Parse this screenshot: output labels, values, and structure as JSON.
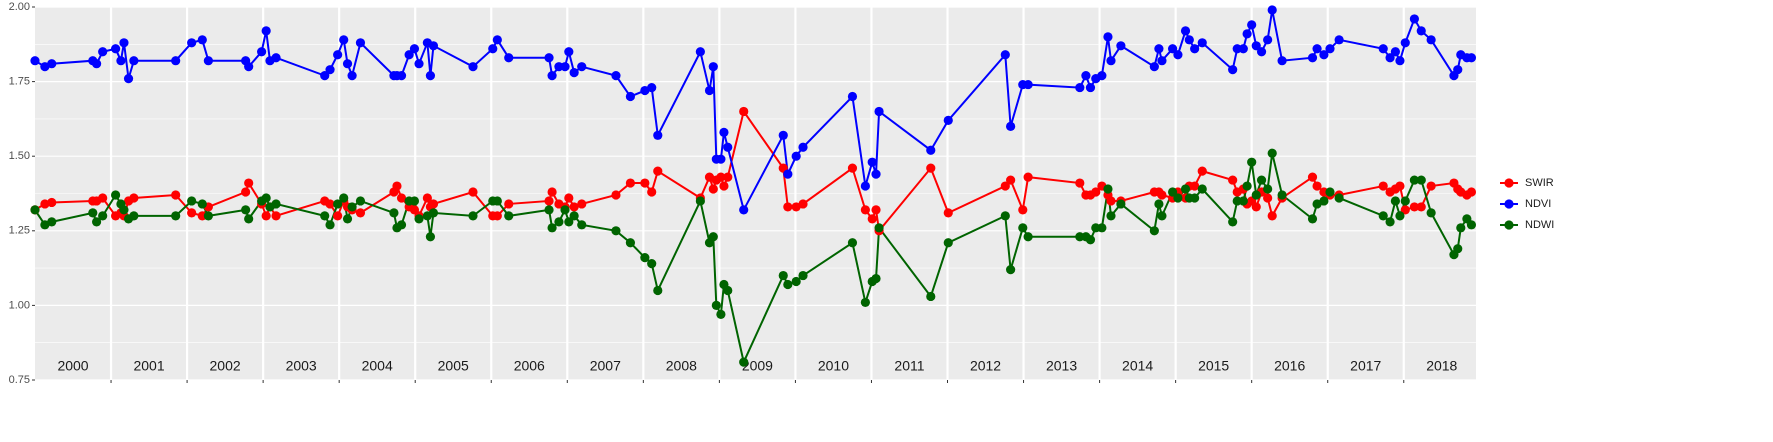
{
  "chart_data": {
    "type": "line",
    "x": [
      2000.0,
      2000.13,
      2000.22,
      2000.76,
      2000.81,
      2000.89,
      2001.06,
      2001.13,
      2001.17,
      2001.23,
      2001.3,
      2001.85,
      2002.06,
      2002.2,
      2002.28,
      2002.77,
      2002.81,
      2002.98,
      2003.04,
      2003.09,
      2003.17,
      2003.81,
      2003.88,
      2003.98,
      2004.06,
      2004.11,
      2004.17,
      2004.28,
      2004.72,
      2004.76,
      2004.82,
      2004.92,
      2004.99,
      2005.05,
      2005.16,
      2005.2,
      2005.24,
      2005.76,
      2006.02,
      2006.08,
      2006.23,
      2006.76,
      2006.8,
      2006.89,
      2006.97,
      2007.02,
      2007.09,
      2007.19,
      2007.64,
      2007.83,
      2008.02,
      2008.11,
      2008.19,
      2008.75,
      2008.87,
      2008.92,
      2008.96,
      2009.02,
      2009.06,
      2009.11,
      2009.32,
      2009.84,
      2009.9,
      2010.01,
      2010.1,
      2010.75,
      2010.92,
      2011.01,
      2011.06,
      2011.1,
      2011.78,
      2012.01,
      2012.76,
      2012.83,
      2012.99,
      2013.06,
      2013.74,
      2013.82,
      2013.88,
      2013.95,
      2014.03,
      2014.11,
      2014.15,
      2014.28,
      2014.72,
      2014.78,
      2014.82,
      2014.96,
      2015.03,
      2015.13,
      2015.18,
      2015.25,
      2015.35,
      2015.75,
      2015.81,
      2015.89,
      2015.94,
      2016.0,
      2016.06,
      2016.13,
      2016.21,
      2016.27,
      2016.4,
      2016.8,
      2016.86,
      2016.95,
      2017.03,
      2017.15,
      2017.73,
      2017.82,
      2017.89,
      2017.95,
      2018.02,
      2018.14,
      2018.23,
      2018.36,
      2018.66,
      2018.71,
      2018.75,
      2018.83,
      2018.89
    ],
    "series": [
      {
        "name": "SWIR",
        "color": "#ff0000",
        "values": [
          1.32,
          1.34,
          1.345,
          1.35,
          1.35,
          1.36,
          1.3,
          1.31,
          1.3,
          1.35,
          1.36,
          1.37,
          1.31,
          1.3,
          1.33,
          1.38,
          1.41,
          1.34,
          1.3,
          1.33,
          1.3,
          1.35,
          1.34,
          1.3,
          1.35,
          1.33,
          1.32,
          1.31,
          1.38,
          1.4,
          1.36,
          1.33,
          1.32,
          1.3,
          1.36,
          1.33,
          1.34,
          1.38,
          1.3,
          1.3,
          1.34,
          1.35,
          1.38,
          1.34,
          1.33,
          1.36,
          1.33,
          1.34,
          1.37,
          1.41,
          1.41,
          1.38,
          1.45,
          1.36,
          1.43,
          1.39,
          1.42,
          1.43,
          1.4,
          1.43,
          1.65,
          1.46,
          1.33,
          1.33,
          1.34,
          1.46,
          1.32,
          1.29,
          1.32,
          1.25,
          1.46,
          1.31,
          1.4,
          1.42,
          1.32,
          1.43,
          1.41,
          1.37,
          1.37,
          1.38,
          1.4,
          1.37,
          1.35,
          1.35,
          1.38,
          1.38,
          1.37,
          1.36,
          1.38,
          1.36,
          1.4,
          1.4,
          1.45,
          1.42,
          1.38,
          1.39,
          1.34,
          1.35,
          1.33,
          1.38,
          1.36,
          1.3,
          1.36,
          1.43,
          1.4,
          1.38,
          1.37,
          1.37,
          1.4,
          1.38,
          1.39,
          1.4,
          1.32,
          1.33,
          1.33,
          1.4,
          1.41,
          1.39,
          1.38,
          1.37,
          1.38
        ]
      },
      {
        "name": "NDVI",
        "color": "#0000ff",
        "values": [
          1.82,
          1.8,
          1.81,
          1.82,
          1.81,
          1.85,
          1.86,
          1.82,
          1.88,
          1.76,
          1.82,
          1.82,
          1.88,
          1.89,
          1.82,
          1.82,
          1.8,
          1.85,
          1.92,
          1.82,
          1.83,
          1.77,
          1.79,
          1.84,
          1.89,
          1.81,
          1.77,
          1.88,
          1.77,
          1.77,
          1.77,
          1.84,
          1.86,
          1.81,
          1.88,
          1.77,
          1.87,
          1.8,
          1.86,
          1.89,
          1.83,
          1.83,
          1.77,
          1.8,
          1.8,
          1.85,
          1.78,
          1.8,
          1.77,
          1.7,
          1.72,
          1.73,
          1.57,
          1.85,
          1.72,
          1.8,
          1.49,
          1.49,
          1.58,
          1.53,
          1.32,
          1.57,
          1.44,
          1.5,
          1.53,
          1.7,
          1.4,
          1.48,
          1.44,
          1.65,
          1.52,
          1.62,
          1.84,
          1.6,
          1.74,
          1.74,
          1.73,
          1.77,
          1.73,
          1.76,
          1.77,
          1.9,
          1.82,
          1.87,
          1.8,
          1.86,
          1.82,
          1.86,
          1.84,
          1.92,
          1.89,
          1.86,
          1.88,
          1.79,
          1.86,
          1.86,
          1.91,
          1.94,
          1.87,
          1.85,
          1.89,
          1.99,
          1.82,
          1.83,
          1.86,
          1.84,
          1.86,
          1.89,
          1.86,
          1.83,
          1.85,
          1.82,
          1.88,
          1.96,
          1.92,
          1.89,
          1.77,
          1.79,
          1.84,
          1.83,
          1.83
        ]
      },
      {
        "name": "NDWI",
        "color": "#006400",
        "values": [
          1.32,
          1.27,
          1.28,
          1.31,
          1.28,
          1.3,
          1.37,
          1.34,
          1.32,
          1.29,
          1.3,
          1.3,
          1.35,
          1.34,
          1.3,
          1.32,
          1.29,
          1.35,
          1.36,
          1.33,
          1.34,
          1.3,
          1.27,
          1.34,
          1.36,
          1.29,
          1.33,
          1.35,
          1.31,
          1.26,
          1.27,
          1.35,
          1.35,
          1.29,
          1.3,
          1.23,
          1.31,
          1.3,
          1.35,
          1.35,
          1.3,
          1.32,
          1.26,
          1.28,
          1.32,
          1.28,
          1.3,
          1.27,
          1.25,
          1.21,
          1.16,
          1.14,
          1.05,
          1.35,
          1.21,
          1.23,
          1.0,
          0.97,
          1.07,
          1.05,
          0.81,
          1.1,
          1.07,
          1.08,
          1.1,
          1.21,
          1.01,
          1.08,
          1.09,
          1.26,
          1.03,
          1.21,
          1.3,
          1.12,
          1.26,
          1.23,
          1.23,
          1.23,
          1.22,
          1.26,
          1.26,
          1.39,
          1.3,
          1.34,
          1.25,
          1.34,
          1.3,
          1.38,
          1.36,
          1.39,
          1.36,
          1.36,
          1.39,
          1.28,
          1.35,
          1.35,
          1.4,
          1.48,
          1.37,
          1.42,
          1.39,
          1.51,
          1.37,
          1.29,
          1.34,
          1.35,
          1.38,
          1.36,
          1.3,
          1.28,
          1.35,
          1.3,
          1.35,
          1.42,
          1.42,
          1.31,
          1.17,
          1.19,
          1.26,
          1.29,
          1.27
        ]
      }
    ],
    "xlim": [
      2000,
      2018.95
    ],
    "xticks": [
      2001,
      2002,
      2003,
      2004,
      2005,
      2006,
      2007,
      2008,
      2009,
      2010,
      2011,
      2012,
      2013,
      2014,
      2015,
      2016,
      2017,
      2018
    ],
    "ylim": [
      0.75,
      2.0
    ],
    "yticks": [
      0.75,
      {
        "value": 1.0,
        "label": "1.00"
      },
      1.25,
      {
        "value": 1.5,
        "label": "1.50"
      },
      1.75,
      {
        "value": 2.0,
        "label": "2.00"
      }
    ],
    "annotations": [
      {
        "x": 2000.5,
        "text": "2000"
      },
      {
        "x": 2001.5,
        "text": "2001"
      },
      {
        "x": 2002.5,
        "text": "2002"
      },
      {
        "x": 2003.5,
        "text": "2003"
      },
      {
        "x": 2004.5,
        "text": "2004"
      },
      {
        "x": 2005.5,
        "text": "2005"
      },
      {
        "x": 2006.5,
        "text": "2006"
      },
      {
        "x": 2007.5,
        "text": "2007"
      },
      {
        "x": 2008.5,
        "text": "2008"
      },
      {
        "x": 2009.5,
        "text": "2009"
      },
      {
        "x": 2010.5,
        "text": "2010"
      },
      {
        "x": 2011.5,
        "text": "2011"
      },
      {
        "x": 2012.5,
        "text": "2012"
      },
      {
        "x": 2013.5,
        "text": "2013"
      },
      {
        "x": 2014.5,
        "text": "2014"
      },
      {
        "x": 2015.5,
        "text": "2015"
      },
      {
        "x": 2016.5,
        "text": "2016"
      },
      {
        "x": 2017.5,
        "text": "2017"
      },
      {
        "x": 2018.5,
        "text": "2018"
      }
    ],
    "grid": true,
    "legend": "right"
  }
}
